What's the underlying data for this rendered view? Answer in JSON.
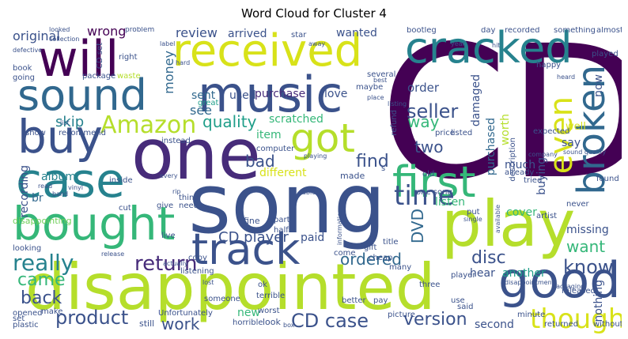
{
  "title": "Word Cloud for Cluster 4",
  "words": {
    "cd": "CD",
    "song": "song",
    "one": "one",
    "music": "music",
    "will": "will",
    "received": "received",
    "cracked": "cracked",
    "disappointed": "disappointed",
    "play": "play",
    "bought": "bought",
    "case": "case",
    "buy": "buy",
    "sound": "sound",
    "track": "track",
    "first": "first",
    "good": "good",
    "broken": "broken",
    "got": "got",
    "time": "time",
    "amazon": "Amazon",
    "even": "even",
    "thought": "thought",
    "cd_case": "CD case",
    "seller": "seller",
    "really": "really",
    "return": "return",
    "version": "version",
    "product": "product",
    "back": "back",
    "came": "came",
    "know": "know",
    "find": "find",
    "quality": "quality",
    "dvd": "DVD",
    "two": "two",
    "cd_player": "CD player",
    "ordered": "ordered",
    "disc": "disc",
    "want": "want",
    "work": "work",
    "bad": "bad",
    "skip": "skip",
    "listen": "listen",
    "wanted": "wanted",
    "arrived": "arrived",
    "review": "review",
    "original": "original",
    "wrong": "wrong",
    "money": "money",
    "see": "see",
    "sent": "sent",
    "used": "used",
    "purchase": "purchase",
    "love": "love",
    "order": "order",
    "way": "way",
    "scratched": "scratched",
    "damaged": "damaged",
    "worth": "worth",
    "purchased": "purchased",
    "much": "much",
    "buying": "buying",
    "say": "say",
    "well": "well",
    "cover": "cover",
    "another": "another",
    "missing": "missing",
    "hear": "hear",
    "item": "item",
    "different": "different",
    "recording": "recording",
    "album": "album",
    "br": "br",
    "paid": "paid",
    "new": "new",
    "second": "second",
    "nothing": "nothing",
    "now": "now",
    "disappointing": "disappointing",
    "fine": "fine",
    "made": "made",
    "look": "look",
    "still": "still",
    "bootleg": "bootleg",
    "day": "day",
    "recorded": "recorded",
    "something": "something",
    "played": "played",
    "package": "package",
    "waste": "waste",
    "great": "great",
    "returned": "returned",
    "without": "without",
    "never": "never",
    "artist": "artist",
    "released": "released",
    "better": "better",
    "pay": "pay",
    "said": "said",
    "terrible": "terrible",
    "worst": "worst",
    "book": "book",
    "going": "going",
    "show": "show",
    "recommend": "recommend",
    "right": "right",
    "maybe": "maybe",
    "several": "several",
    "happy": "happy",
    "listening": "listening",
    "copy": "copy",
    "half": "half",
    "part": "part",
    "come": "come",
    "cheap": "cheap",
    "many": "many",
    "three": "three",
    "player": "player",
    "picture": "picture",
    "title": "title",
    "someone": "someone",
    "looking": "looking",
    "opened": "opened",
    "set": "set",
    "plastic": "plastic",
    "unfortunately": "Unfortunately",
    "horrible": "horrible",
    "minute": "minute",
    "use": "use",
    "put": "put",
    "refund": "refund",
    "description": "description",
    "listed": "listed",
    "price": "price",
    "expected": "expected",
    "found": "found",
    "tried": "tried",
    "already": "already",
    "inside": "inside",
    "instead": "instead",
    "give": "give",
    "need": "need",
    "thing": "thing",
    "cut": "cut",
    "live": "live",
    "almost": "almost",
    "star": "star",
    "problem": "problem",
    "looked": "looked",
    "collection": "collection",
    "defective": "defective",
    "label": "label",
    "hard": "hard",
    "heard": "heard",
    "place": "place",
    "hit": "hit",
    "best": "best",
    "listing": "listing",
    "computer": "computer",
    "old": "old",
    "sound_quality": "sound quality",
    "company": "company",
    "ok": "ok",
    "gift": "gift",
    "able": "able",
    "information": "information",
    "available": "available",
    "packaging": "packaging",
    "one_song": "one song",
    "release": "release",
    "actually": "actually",
    "read": "read",
    "every": "every",
    "list": "list",
    "box": "box",
    "band": "band",
    "away": "away",
    "year": "year",
    "single": "single",
    "rip": "rip",
    "vinyl": "vinyl",
    "lost": "lost",
    "make": "make",
    "playing": "playing",
    "disappointment": "disappointment",
    "s": "s",
    "cd_set": "CD set"
  }
}
